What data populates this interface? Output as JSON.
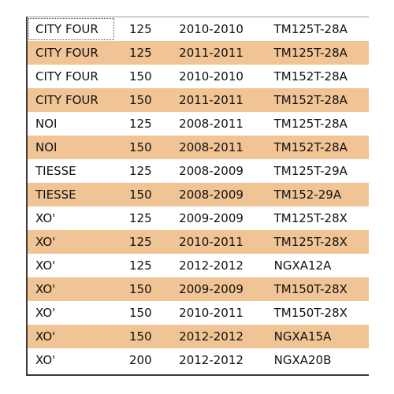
{
  "table": {
    "rows": [
      {
        "model": "CITY FOUR",
        "cc": "125",
        "years": "2010-2010",
        "engine": "TM125T-28A"
      },
      {
        "model": "CITY FOUR",
        "cc": "125",
        "years": "2011-2011",
        "engine": "TM125T-28A"
      },
      {
        "model": "CITY FOUR",
        "cc": "150",
        "years": "2010-2010",
        "engine": "TM152T-28A"
      },
      {
        "model": "CITY FOUR",
        "cc": "150",
        "years": "2011-2011",
        "engine": "TM152T-28A"
      },
      {
        "model": "NOI",
        "cc": "125",
        "years": "2008-2011",
        "engine": "TM125T-28A"
      },
      {
        "model": "NOI",
        "cc": "150",
        "years": "2008-2011",
        "engine": "TM152T-28A"
      },
      {
        "model": "TIESSE",
        "cc": "125",
        "years": "2008-2009",
        "engine": "TM125T-29A"
      },
      {
        "model": "TIESSE",
        "cc": "150",
        "years": "2008-2009",
        "engine": "TM152-29A"
      },
      {
        "model": "XO'",
        "cc": "125",
        "years": "2009-2009",
        "engine": "TM125T-28X"
      },
      {
        "model": "XO'",
        "cc": "125",
        "years": "2010-2011",
        "engine": "TM125T-28X"
      },
      {
        "model": "XO'",
        "cc": "125",
        "years": "2012-2012",
        "engine": "NGXA12A"
      },
      {
        "model": "XO'",
        "cc": "150",
        "years": "2009-2009",
        "engine": "TM150T-28X"
      },
      {
        "model": "XO'",
        "cc": "150",
        "years": "2010-2011",
        "engine": "TM150T-28X"
      },
      {
        "model": "XO'",
        "cc": "150",
        "years": "2012-2012",
        "engine": "NGXA15A"
      },
      {
        "model": "XO'",
        "cc": "200",
        "years": "2012-2012",
        "engine": "NGXA20B"
      }
    ]
  },
  "colors": {
    "alt_row": "#f0c495",
    "row": "#ffffff",
    "text": "#111111"
  }
}
